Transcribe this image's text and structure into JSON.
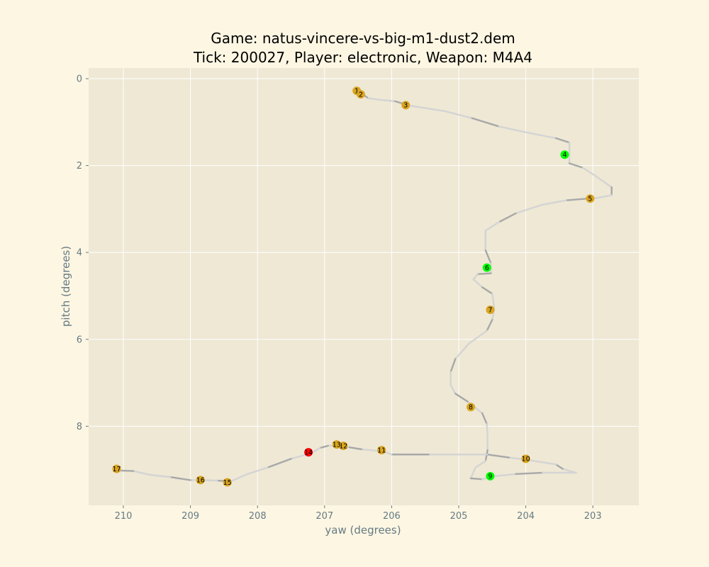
{
  "chart_data": {
    "type": "line",
    "title_line1": "Game: natus-vincere-vs-big-m1-dust2.dem",
    "title_line2": "Tick: 200027, Player: electronic, Weapon: M4A4",
    "xlabel": "yaw (degrees)",
    "ylabel": "pitch (degrees)",
    "xlim": [
      210.5,
      202.4
    ],
    "ylim": [
      9.8,
      -0.25
    ],
    "x_inverted": true,
    "y_inverted": true,
    "grid": true,
    "xticks": [
      210,
      209,
      208,
      207,
      206,
      205,
      204,
      203
    ],
    "yticks": [
      0,
      2,
      4,
      6,
      8
    ],
    "colors": {
      "figure_bg": "#fdf6e3",
      "axes_bg": "#eee8d5",
      "grid": "#ffffff",
      "path_dark": "#a8a8a8",
      "path_light": "#d4d4d4",
      "marker_orange": "#daa520",
      "marker_green": "#00ff00",
      "marker_red": "#ff0000"
    },
    "path": [
      [
        206.5,
        0.28
      ],
      [
        206.42,
        0.37
      ],
      [
        206.35,
        0.45
      ],
      [
        206.15,
        0.49
      ],
      [
        205.95,
        0.52
      ],
      [
        205.73,
        0.62
      ],
      [
        205.2,
        0.75
      ],
      [
        204.8,
        0.91
      ],
      [
        204.4,
        1.1
      ],
      [
        203.95,
        1.25
      ],
      [
        203.55,
        1.37
      ],
      [
        203.35,
        1.47
      ],
      [
        203.35,
        1.73
      ],
      [
        203.35,
        1.95
      ],
      [
        203.15,
        2.05
      ],
      [
        202.95,
        2.25
      ],
      [
        202.72,
        2.5
      ],
      [
        202.72,
        2.68
      ],
      [
        202.95,
        2.75
      ],
      [
        203.0,
        2.75
      ],
      [
        203.4,
        2.8
      ],
      [
        203.75,
        2.9
      ],
      [
        204.15,
        3.1
      ],
      [
        204.4,
        3.3
      ],
      [
        204.6,
        3.5
      ],
      [
        204.6,
        3.95
      ],
      [
        204.52,
        4.25
      ],
      [
        204.52,
        4.35
      ],
      [
        204.52,
        4.48
      ],
      [
        204.72,
        4.5
      ],
      [
        204.78,
        4.62
      ],
      [
        204.65,
        4.8
      ],
      [
        204.5,
        4.95
      ],
      [
        204.47,
        5.3
      ],
      [
        204.5,
        5.55
      ],
      [
        204.58,
        5.8
      ],
      [
        204.85,
        6.1
      ],
      [
        205.05,
        6.45
      ],
      [
        205.12,
        6.75
      ],
      [
        205.12,
        7.05
      ],
      [
        205.05,
        7.25
      ],
      [
        204.85,
        7.45
      ],
      [
        204.77,
        7.55
      ],
      [
        204.65,
        7.7
      ],
      [
        204.58,
        7.95
      ],
      [
        204.57,
        8.25
      ],
      [
        204.57,
        8.55
      ],
      [
        204.6,
        8.8
      ],
      [
        204.75,
        8.95
      ],
      [
        204.82,
        9.2
      ],
      [
        204.65,
        9.22
      ],
      [
        204.47,
        9.15
      ],
      [
        204.15,
        9.1
      ],
      [
        203.75,
        9.07
      ],
      [
        203.25,
        9.07
      ],
      [
        203.45,
        8.98
      ],
      [
        203.55,
        8.88
      ],
      [
        203.95,
        8.78
      ],
      [
        204.25,
        8.72
      ],
      [
        204.58,
        8.65
      ],
      [
        204.9,
        8.65
      ],
      [
        205.45,
        8.65
      ],
      [
        206.0,
        8.65
      ],
      [
        206.12,
        8.58
      ],
      [
        206.45,
        8.53
      ],
      [
        206.65,
        8.48
      ],
      [
        206.75,
        8.45
      ],
      [
        206.95,
        8.45
      ],
      [
        207.07,
        8.5
      ],
      [
        207.2,
        8.62
      ],
      [
        207.5,
        8.75
      ],
      [
        207.85,
        8.95
      ],
      [
        208.15,
        9.1
      ],
      [
        208.4,
        9.27
      ],
      [
        208.6,
        9.25
      ],
      [
        208.8,
        9.24
      ],
      [
        209.0,
        9.24
      ],
      [
        209.3,
        9.17
      ],
      [
        209.6,
        9.12
      ],
      [
        209.85,
        9.03
      ],
      [
        210.05,
        9.02
      ],
      [
        210.1,
        8.98
      ]
    ],
    "points": [
      {
        "label": "1",
        "yaw": 206.52,
        "pitch": 0.28,
        "color": "orange"
      },
      {
        "label": "2",
        "yaw": 206.46,
        "pitch": 0.36,
        "color": "orange"
      },
      {
        "label": "3",
        "yaw": 205.79,
        "pitch": 0.61,
        "color": "orange"
      },
      {
        "label": "4",
        "yaw": 203.42,
        "pitch": 1.75,
        "color": "green"
      },
      {
        "label": "5",
        "yaw": 203.04,
        "pitch": 2.76,
        "color": "orange"
      },
      {
        "label": "6",
        "yaw": 204.58,
        "pitch": 4.35,
        "color": "green"
      },
      {
        "label": "7",
        "yaw": 204.53,
        "pitch": 5.32,
        "color": "orange"
      },
      {
        "label": "8",
        "yaw": 204.82,
        "pitch": 7.56,
        "color": "orange"
      },
      {
        "label": "9",
        "yaw": 204.53,
        "pitch": 9.15,
        "color": "green"
      },
      {
        "label": "10",
        "yaw": 204.0,
        "pitch": 8.75,
        "color": "orange"
      },
      {
        "label": "11",
        "yaw": 206.15,
        "pitch": 8.55,
        "color": "orange"
      },
      {
        "label": "12",
        "yaw": 206.72,
        "pitch": 8.45,
        "color": "orange"
      },
      {
        "label": "13",
        "yaw": 206.82,
        "pitch": 8.42,
        "color": "orange"
      },
      {
        "label": "14",
        "yaw": 207.24,
        "pitch": 8.6,
        "color": "red"
      },
      {
        "label": "15",
        "yaw": 208.45,
        "pitch": 9.29,
        "color": "orange"
      },
      {
        "label": "16",
        "yaw": 208.85,
        "pitch": 9.24,
        "color": "orange"
      },
      {
        "label": "17",
        "yaw": 210.1,
        "pitch": 8.98,
        "color": "orange"
      }
    ]
  }
}
